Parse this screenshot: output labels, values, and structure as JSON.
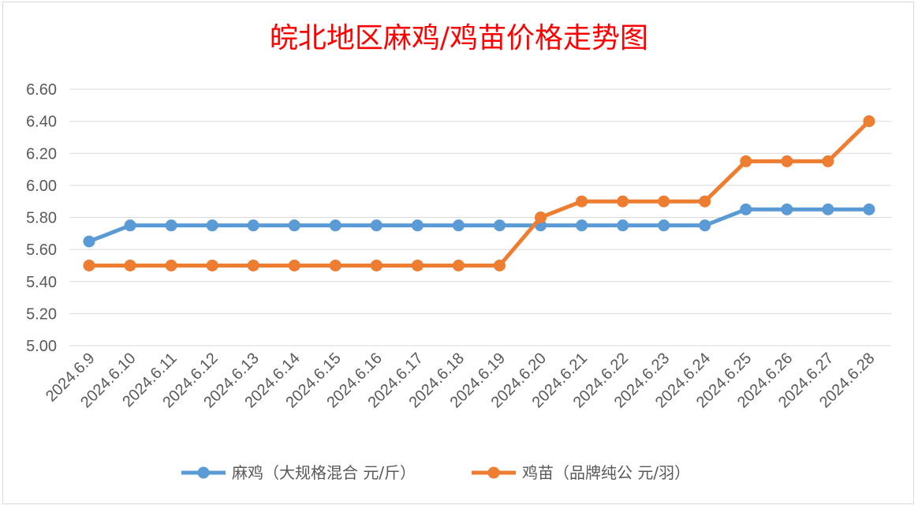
{
  "chart_data": {
    "type": "line",
    "title": "皖北地区麻鸡/鸡苗价格走势图",
    "categories": [
      "2024.6.9",
      "2024.6.10",
      "2024.6.11",
      "2024.6.12",
      "2024.6.13",
      "2024.6.14",
      "2024.6.15",
      "2024.6.16",
      "2024.6.17",
      "2024.6.18",
      "2024.6.19",
      "2024.6.20",
      "2024.6.21",
      "2024.6.22",
      "2024.6.23",
      "2024.6.24",
      "2024.6.25",
      "2024.6.26",
      "2024.6.27",
      "2024.6.28"
    ],
    "series": [
      {
        "name": "麻鸡（大规格混合 元/斤）",
        "color": "#5b9bd5",
        "values": [
          5.65,
          5.75,
          5.75,
          5.75,
          5.75,
          5.75,
          5.75,
          5.75,
          5.75,
          5.75,
          5.75,
          5.75,
          5.75,
          5.75,
          5.75,
          5.75,
          5.85,
          5.85,
          5.85,
          5.85
        ]
      },
      {
        "name": "鸡苗（品牌纯公 元/羽）",
        "color": "#ed7d31",
        "values": [
          5.5,
          5.5,
          5.5,
          5.5,
          5.5,
          5.5,
          5.5,
          5.5,
          5.5,
          5.5,
          5.5,
          5.8,
          5.9,
          5.9,
          5.9,
          5.9,
          6.15,
          6.15,
          6.15,
          6.4
        ]
      }
    ],
    "ylim": [
      5.0,
      6.6
    ],
    "yticks": [
      "5.00",
      "5.20",
      "5.40",
      "5.60",
      "5.80",
      "6.00",
      "6.20",
      "6.40",
      "6.60"
    ],
    "grid": true,
    "legend_position": "bottom"
  }
}
